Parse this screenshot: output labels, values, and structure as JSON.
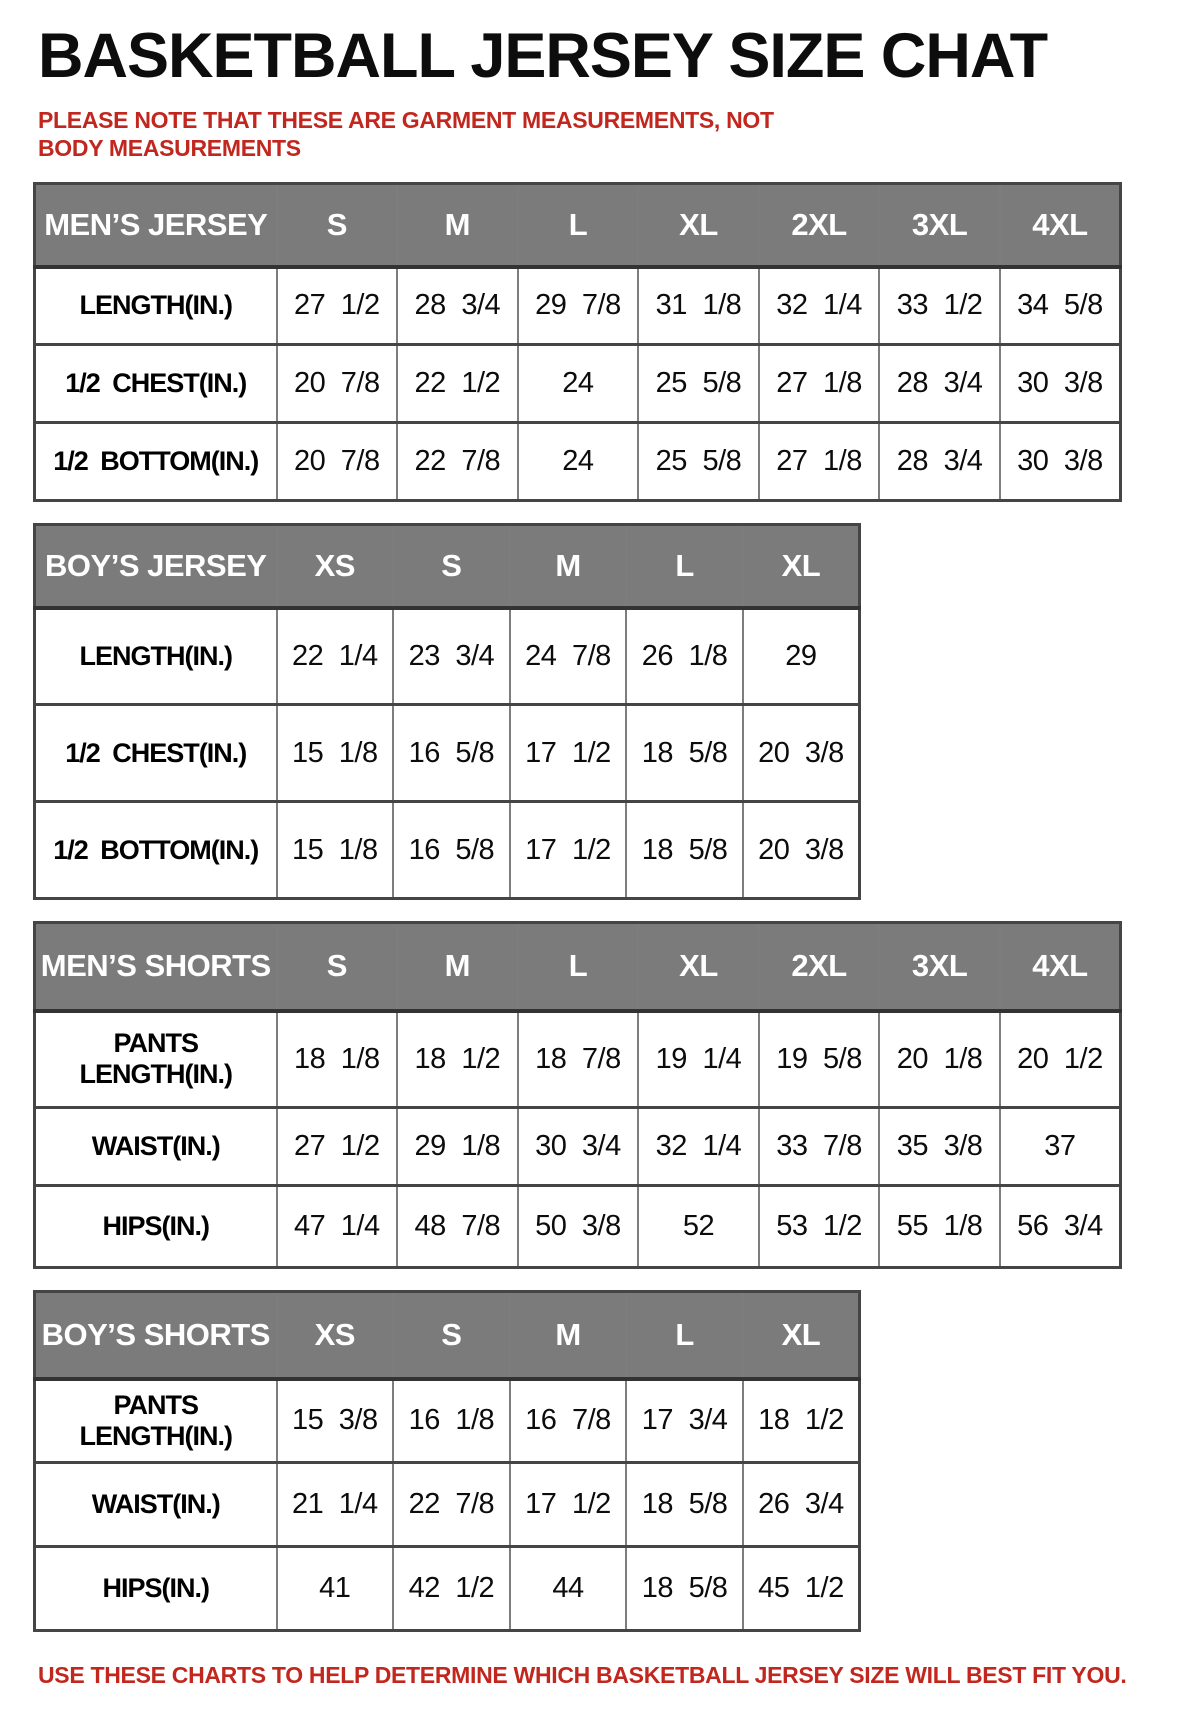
{
  "page": {
    "title": "BASKETBALL JERSEY SIZE CHAT",
    "note_top": "PLEASE NOTE THAT THESE ARE GARMENT MEASUREMENTS, NOT BODY MEASUREMENTS",
    "note_bottom": "USE THESE CHARTS TO HELP DETERMINE WHICH BASKETBALL JERSEY SIZE WILL BEST FIT YOU.",
    "colors": {
      "note_red": "#c1271e",
      "header_bg": "#7b7b7b",
      "header_text": "#ffffff",
      "border_dark": "#454545",
      "border_light": "#7d7d7d",
      "text": "#111111"
    }
  },
  "tables": [
    {
      "id": "mens-jersey",
      "header": [
        "MEN’S JERSEY",
        "S",
        "M",
        "L",
        "XL",
        "2XL",
        "3XL",
        "4XL"
      ],
      "rows": [
        {
          "label": "LENGTH(IN.)",
          "values": [
            "27 1/2",
            "28 3/4",
            "29 7/8",
            "31 1/8",
            "32 1/4",
            "33 1/2",
            "34 5/8"
          ]
        },
        {
          "label": "1/2 CHEST(IN.)",
          "values": [
            "20 7/8",
            "22 1/2",
            "24",
            "25 5/8",
            "27 1/8",
            "28 3/4",
            "30 3/8"
          ]
        },
        {
          "label": "1/2 BOTTOM(IN.)",
          "values": [
            "20 7/8",
            "22 7/8",
            "24",
            "25 5/8",
            "27 1/8",
            "28 3/4",
            "30 3/8"
          ]
        }
      ]
    },
    {
      "id": "boys-jersey",
      "header": [
        "BOY’S JERSEY",
        "XS",
        "S",
        "M",
        "L",
        "XL"
      ],
      "rows": [
        {
          "label": "LENGTH(IN.)",
          "values": [
            "22 1/4",
            "23 3/4",
            "24 7/8",
            "26 1/8",
            "29"
          ]
        },
        {
          "label": "1/2 CHEST(IN.)",
          "values": [
            "15 1/8",
            "16 5/8",
            "17 1/2",
            "18 5/8",
            "20 3/8"
          ]
        },
        {
          "label": "1/2 BOTTOM(IN.)",
          "values": [
            "15 1/8",
            "16 5/8",
            "17 1/2",
            "18 5/8",
            "20 3/8"
          ]
        }
      ]
    },
    {
      "id": "mens-shorts",
      "header": [
        "MEN’S SHORTS",
        "S",
        "M",
        "L",
        "XL",
        "2XL",
        "3XL",
        "4XL"
      ],
      "rows": [
        {
          "label": "PANTS LENGTH(IN.)",
          "values": [
            "18 1/8",
            "18 1/2",
            "18 7/8",
            "19 1/4",
            "19 5/8",
            "20 1/8",
            "20 1/2"
          ]
        },
        {
          "label": "WAIST(IN.)",
          "values": [
            "27 1/2",
            "29 1/8",
            "30 3/4",
            "32 1/4",
            "33 7/8",
            "35 3/8",
            "37"
          ]
        },
        {
          "label": "HIPS(IN.)",
          "values": [
            "47 1/4",
            "48 7/8",
            "50 3/8",
            "52",
            "53 1/2",
            "55 1/8",
            "56 3/4"
          ]
        }
      ]
    },
    {
      "id": "boys-shorts",
      "header": [
        "BOY’S SHORTS",
        "XS",
        "S",
        "M",
        "L",
        "XL"
      ],
      "rows": [
        {
          "label": "PANTS LENGTH(IN.)",
          "values": [
            "15 3/8",
            "16 1/8",
            "16 7/8",
            "17 3/4",
            "18 1/2"
          ]
        },
        {
          "label": "WAIST(IN.)",
          "values": [
            "21 1/4",
            "22 7/8",
            "17 1/2",
            "18 5/8",
            "26 3/4"
          ]
        },
        {
          "label": "HIPS(IN.)",
          "values": [
            "41",
            "42 1/2",
            "44",
            "18 5/8",
            "45 1/2"
          ]
        }
      ]
    }
  ]
}
